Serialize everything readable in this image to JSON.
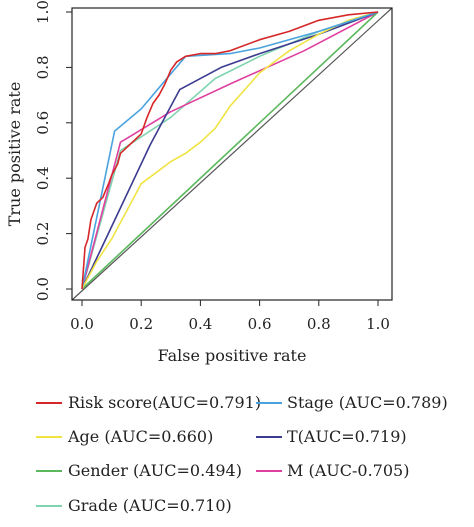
{
  "chart_data": {
    "type": "line",
    "title": "",
    "xlabel": "False positive rate",
    "ylabel": "True positive rate",
    "xlim": [
      0,
      1
    ],
    "ylim": [
      0,
      1
    ],
    "x_ticks": [
      "0.0",
      "0.2",
      "0.4",
      "0.6",
      "0.8",
      "1.0"
    ],
    "y_ticks": [
      "0.0",
      "0.2",
      "0.4",
      "0.6",
      "0.8",
      "1.0"
    ],
    "grid": false,
    "legend_position": "bottom",
    "diagonal_reference": true,
    "series": [
      {
        "name": "Risk score(AUC=0.791)",
        "color": "#d62728",
        "points": [
          [
            0,
            0
          ],
          [
            0.01,
            0.15
          ],
          [
            0.02,
            0.18
          ],
          [
            0.03,
            0.25
          ],
          [
            0.04,
            0.28
          ],
          [
            0.05,
            0.31
          ],
          [
            0.07,
            0.33
          ],
          [
            0.09,
            0.38
          ],
          [
            0.1,
            0.41
          ],
          [
            0.12,
            0.45
          ],
          [
            0.13,
            0.49
          ],
          [
            0.16,
            0.52
          ],
          [
            0.2,
            0.56
          ],
          [
            0.22,
            0.62
          ],
          [
            0.24,
            0.67
          ],
          [
            0.26,
            0.7
          ],
          [
            0.28,
            0.74
          ],
          [
            0.3,
            0.79
          ],
          [
            0.32,
            0.82
          ],
          [
            0.35,
            0.84
          ],
          [
            0.4,
            0.85
          ],
          [
            0.45,
            0.85
          ],
          [
            0.5,
            0.86
          ],
          [
            0.6,
            0.9
          ],
          [
            0.7,
            0.93
          ],
          [
            0.8,
            0.97
          ],
          [
            0.9,
            0.99
          ],
          [
            1,
            1
          ]
        ]
      },
      {
        "name": "Stage (AUC=0.789)",
        "color": "#4aa3df",
        "points": [
          [
            0,
            0
          ],
          [
            0.11,
            0.57
          ],
          [
            0.2,
            0.65
          ],
          [
            0.35,
            0.84
          ],
          [
            0.5,
            0.85
          ],
          [
            0.6,
            0.87
          ],
          [
            0.8,
            0.93
          ],
          [
            1,
            1
          ]
        ]
      },
      {
        "name": "Age (AUC=0.660)",
        "color": "#f0e442",
        "points": [
          [
            0,
            0
          ],
          [
            0.05,
            0.1
          ],
          [
            0.1,
            0.18
          ],
          [
            0.15,
            0.28
          ],
          [
            0.2,
            0.38
          ],
          [
            0.25,
            0.42
          ],
          [
            0.3,
            0.46
          ],
          [
            0.35,
            0.49
          ],
          [
            0.4,
            0.53
          ],
          [
            0.45,
            0.58
          ],
          [
            0.5,
            0.66
          ],
          [
            0.55,
            0.72
          ],
          [
            0.6,
            0.78
          ],
          [
            0.7,
            0.86
          ],
          [
            0.8,
            0.92
          ],
          [
            0.9,
            0.97
          ],
          [
            1,
            1
          ]
        ]
      },
      {
        "name": "T(AUC=0.719)",
        "color": "#3b3b8f",
        "points": [
          [
            0,
            0
          ],
          [
            0.08,
            0.18
          ],
          [
            0.23,
            0.52
          ],
          [
            0.33,
            0.72
          ],
          [
            0.47,
            0.8
          ],
          [
            0.6,
            0.85
          ],
          [
            0.8,
            0.92
          ],
          [
            1,
            1
          ]
        ]
      },
      {
        "name": "Gender (AUC=0.494)",
        "color": "#5cb85c",
        "points": [
          [
            0,
            0
          ],
          [
            1,
            1
          ]
        ]
      },
      {
        "name": "M (AUC-0.705)",
        "color": "#e040a0",
        "points": [
          [
            0,
            0
          ],
          [
            0.13,
            0.53
          ],
          [
            0.3,
            0.64
          ],
          [
            0.5,
            0.74
          ],
          [
            0.75,
            0.86
          ],
          [
            1,
            1
          ]
        ]
      },
      {
        "name": "Grade (AUC=0.710)",
        "color": "#7fd4b0",
        "points": [
          [
            0,
            0
          ],
          [
            0.13,
            0.5
          ],
          [
            0.3,
            0.62
          ],
          [
            0.45,
            0.76
          ],
          [
            0.6,
            0.84
          ],
          [
            0.8,
            0.93
          ],
          [
            1,
            1
          ]
        ]
      }
    ]
  }
}
